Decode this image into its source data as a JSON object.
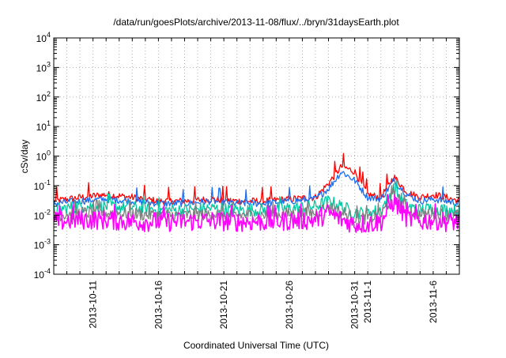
{
  "chart_data": {
    "type": "line",
    "title": "/data/run/goesPlots/archive/2013-11-08/flux/../bryn/31daysEarth.plot",
    "xlabel": "Coordinated Universal Time (UTC)",
    "ylabel": "cSv/day",
    "yscale": "log",
    "ylim": [
      0.0001,
      10000
    ],
    "y_ticks": [
      {
        "value": 0.0001,
        "mantissa": "10",
        "exp": "-4"
      },
      {
        "value": 0.001,
        "mantissa": "10",
        "exp": "-3"
      },
      {
        "value": 0.01,
        "mantissa": "10",
        "exp": "-2"
      },
      {
        "value": 0.1,
        "mantissa": "10",
        "exp": "-1"
      },
      {
        "value": 1,
        "mantissa": "10",
        "exp": "0"
      },
      {
        "value": 10,
        "mantissa": "10",
        "exp": "1"
      },
      {
        "value": 100,
        "mantissa": "10",
        "exp": "2"
      },
      {
        "value": 1000,
        "mantissa": "10",
        "exp": "3"
      },
      {
        "value": 10000,
        "mantissa": "10",
        "exp": "4"
      }
    ],
    "xlim": [
      "2013-10-08",
      "2013-11-08"
    ],
    "x_ticks": [
      "2013-10-11",
      "2013-10-16",
      "2013-10-21",
      "2013-10-26",
      "2013-10-31",
      "2013-11-1",
      "2013-11-6"
    ],
    "grid": true,
    "series": [
      {
        "color": "#ff0000",
        "x": [
          "2013-10-08",
          "2013-10-10",
          "2013-10-12",
          "2013-10-14",
          "2013-10-16",
          "2013-10-18",
          "2013-10-20",
          "2013-10-22",
          "2013-10-24",
          "2013-10-26",
          "2013-10-28",
          "2013-10-29",
          "2013-10-30",
          "2013-10-31",
          "2013-11-01",
          "2013-11-02",
          "2013-11-03",
          "2013-11-04",
          "2013-11-05",
          "2013-11-06",
          "2013-11-07",
          "2013-11-08"
        ],
        "values": [
          0.03,
          0.04,
          0.05,
          0.04,
          0.03,
          0.03,
          0.035,
          0.03,
          0.03,
          0.035,
          0.04,
          0.12,
          0.45,
          0.3,
          0.05,
          0.04,
          0.2,
          0.06,
          0.04,
          0.05,
          0.04,
          0.03
        ]
      },
      {
        "color": "#1e6ef0",
        "x": [
          "2013-10-08",
          "2013-10-10",
          "2013-10-12",
          "2013-10-14",
          "2013-10-16",
          "2013-10-18",
          "2013-10-20",
          "2013-10-22",
          "2013-10-24",
          "2013-10-26",
          "2013-10-28",
          "2013-10-29",
          "2013-10-30",
          "2013-10-31",
          "2013-11-01",
          "2013-11-02",
          "2013-11-03",
          "2013-11-04",
          "2013-11-05",
          "2013-11-06",
          "2013-11-07",
          "2013-11-08"
        ],
        "values": [
          0.025,
          0.03,
          0.035,
          0.03,
          0.025,
          0.025,
          0.03,
          0.025,
          0.025,
          0.03,
          0.035,
          0.08,
          0.3,
          0.15,
          0.04,
          0.035,
          0.15,
          0.05,
          0.03,
          0.035,
          0.03,
          0.025
        ]
      },
      {
        "color": "#00c8a0",
        "x": [
          "2013-10-08",
          "2013-10-10",
          "2013-10-12",
          "2013-10-14",
          "2013-10-16",
          "2013-10-18",
          "2013-10-20",
          "2013-10-22",
          "2013-10-24",
          "2013-10-26",
          "2013-10-28",
          "2013-10-29",
          "2013-10-30",
          "2013-10-31",
          "2013-11-01",
          "2013-11-02",
          "2013-11-03",
          "2013-11-04",
          "2013-11-05",
          "2013-11-06",
          "2013-11-07",
          "2013-11-08"
        ],
        "values": [
          0.015,
          0.02,
          0.02,
          0.018,
          0.015,
          0.015,
          0.017,
          0.015,
          0.015,
          0.017,
          0.02,
          0.03,
          0.02,
          0.012,
          0.012,
          0.015,
          0.08,
          0.02,
          0.015,
          0.018,
          0.015,
          0.015
        ]
      },
      {
        "color": "#808080",
        "x": [
          "2013-10-08",
          "2013-10-10",
          "2013-10-12",
          "2013-10-14",
          "2013-10-16",
          "2013-10-18",
          "2013-10-20",
          "2013-10-22",
          "2013-10-24",
          "2013-10-26",
          "2013-10-28",
          "2013-10-29",
          "2013-10-30",
          "2013-10-31",
          "2013-11-01",
          "2013-11-02",
          "2013-11-03",
          "2013-11-04",
          "2013-11-05",
          "2013-11-06",
          "2013-11-07",
          "2013-11-08"
        ],
        "values": [
          0.01,
          0.012,
          0.012,
          0.011,
          0.01,
          0.01,
          0.011,
          0.01,
          0.01,
          0.011,
          0.012,
          0.02,
          0.012,
          0.008,
          0.008,
          0.01,
          0.05,
          0.015,
          0.01,
          0.012,
          0.01,
          0.01
        ]
      },
      {
        "color": "#ff00ff",
        "x": [
          "2013-10-08",
          "2013-10-10",
          "2013-10-12",
          "2013-10-14",
          "2013-10-16",
          "2013-10-18",
          "2013-10-20",
          "2013-10-22",
          "2013-10-24",
          "2013-10-26",
          "2013-10-28",
          "2013-10-29",
          "2013-10-30",
          "2013-10-31",
          "2013-11-01",
          "2013-11-02",
          "2013-11-03",
          "2013-11-04",
          "2013-11-05",
          "2013-11-06",
          "2013-11-07",
          "2013-11-08"
        ],
        "values": [
          0.006,
          0.007,
          0.007,
          0.006,
          0.006,
          0.006,
          0.0065,
          0.006,
          0.006,
          0.0065,
          0.007,
          0.012,
          0.007,
          0.005,
          0.005,
          0.006,
          0.03,
          0.008,
          0.006,
          0.007,
          0.006,
          0.006
        ]
      }
    ]
  }
}
